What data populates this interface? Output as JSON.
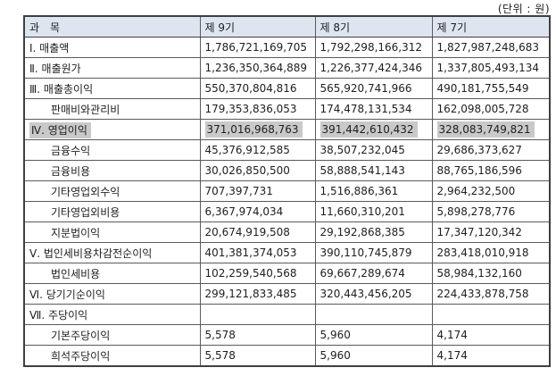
{
  "unit_label": "(단위 : 원)",
  "table": {
    "columns": [
      "과　목",
      "제 9기",
      "제 8기",
      "제 7기"
    ],
    "rows": [
      {
        "label": "Ⅰ. 매출액",
        "indent": false,
        "highlight": false,
        "values": [
          "1,786,721,169,705",
          "1,792,298,166,312",
          "1,827,987,248,683"
        ]
      },
      {
        "label": "Ⅱ. 매출원가",
        "indent": false,
        "highlight": false,
        "values": [
          "1,236,350,364,889",
          "1,226,377,424,346",
          "1,337,805,493,134"
        ]
      },
      {
        "label": "Ⅲ. 매출총이익",
        "indent": false,
        "highlight": false,
        "values": [
          "550,370,804,816",
          "565,920,741,966",
          "490,181,755,549"
        ]
      },
      {
        "label": "판매비와관리비",
        "indent": true,
        "highlight": false,
        "values": [
          "179,353,836,053",
          "174,478,131,534",
          "162,098,005,728"
        ]
      },
      {
        "label": "Ⅳ. 영업이익",
        "indent": false,
        "highlight": true,
        "values": [
          "371,016,968,763",
          "391,442,610,432",
          "328,083,749,821"
        ]
      },
      {
        "label": "금융수익",
        "indent": true,
        "highlight": false,
        "values": [
          "45,376,912,585",
          "38,507,232,045",
          "29,686,373,627"
        ]
      },
      {
        "label": "금융비용",
        "indent": true,
        "highlight": false,
        "values": [
          "30,026,850,500",
          "58,888,541,143",
          "88,765,186,596"
        ]
      },
      {
        "label": "기타영업외수익",
        "indent": true,
        "highlight": false,
        "values": [
          "707,397,731",
          "1,516,886,361",
          "2,964,232,500"
        ]
      },
      {
        "label": "기타영업외비용",
        "indent": true,
        "highlight": false,
        "values": [
          "6,367,974,034",
          "11,660,310,201",
          "5,898,278,776"
        ]
      },
      {
        "label": "지분법이익",
        "indent": true,
        "highlight": false,
        "values": [
          "20,674,919,508",
          "29,192,868,385",
          "17,347,120,342"
        ]
      },
      {
        "label": "Ⅴ. 법인세비용차감전순이익",
        "indent": false,
        "highlight": false,
        "values": [
          "401,381,374,053",
          "390,110,745,879",
          "283,418,010,918"
        ]
      },
      {
        "label": "법인세비용",
        "indent": true,
        "highlight": false,
        "values": [
          "102,259,540,568",
          "69,667,289,674",
          "58,984,132,160"
        ]
      },
      {
        "label": "Ⅵ. 당기기순이익",
        "indent": false,
        "highlight": false,
        "values": [
          "299,121,833,485",
          "320,443,456,205",
          "224,433,878,758"
        ]
      },
      {
        "label": "Ⅶ. 주당이익",
        "indent": false,
        "highlight": false,
        "values": [
          "",
          "",
          ""
        ]
      },
      {
        "label": "기본주당이익",
        "indent": true,
        "highlight": false,
        "values": [
          "5,578",
          "5,960",
          "4,174"
        ]
      },
      {
        "label": "희석주당이익",
        "indent": true,
        "highlight": false,
        "values": [
          "5,578",
          "5,960",
          "4,174"
        ]
      }
    ]
  }
}
